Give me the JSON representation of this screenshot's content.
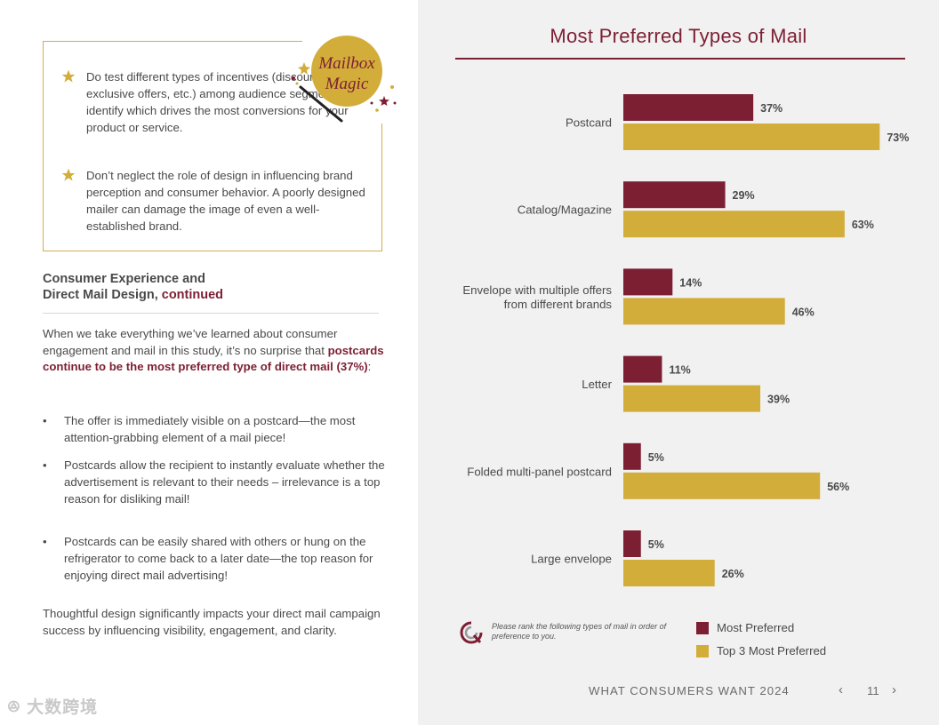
{
  "tips": [
    {
      "text": "Do test different types of incentives (discounts, exclusive offers, etc.) among audience segments to identify which drives the most conversions for your product or service."
    },
    {
      "text": "Don’t neglect the role of design in influencing brand perception and consumer behavior. A poorly designed mailer can damage the image of even a well-established brand."
    }
  ],
  "badge": {
    "line1": "Mailbox",
    "line2": "Magic"
  },
  "section": {
    "heading_line1": "Consumer Experience and",
    "heading_line2": "Direct Mail Design,",
    "heading_cont": "continued"
  },
  "intro": {
    "plain": "When we take everything we’ve learned about consumer engagement and mail in this study, it’s no surprise that ",
    "highlight": "postcards continue to be the most preferred type of direct mail (37%)",
    "tail": ":"
  },
  "bullets": [
    "The offer is immediately visible on a postcard—the most attention-grabbing element of a mail piece!",
    "Postcards allow the recipient to instantly evaluate whether the advertisement is relevant to their needs – irrelevance is a top reason for disliking mail!",
    "Postcards can be easily shared with others or hung on the refrigerator to come back to a later date—the top reason for enjoying direct mail advertising!"
  ],
  "outro": "Thoughtful design significantly impacts your direct mail campaign success by influencing visibility, engagement, and clarity.",
  "watermark": "大数跨境",
  "chart_data": {
    "type": "bar",
    "orientation": "horizontal",
    "title": "Most Preferred Types of Mail",
    "categories": [
      "Postcard",
      "Catalog/Magazine",
      "Envelope with multiple offers from different brands",
      "Letter",
      "Folded multi-panel postcard",
      "Large envelope"
    ],
    "category_lines": [
      [
        "Postcard"
      ],
      [
        "Catalog/Magazine"
      ],
      [
        "Envelope with multiple offers",
        "from different brands"
      ],
      [
        "Letter"
      ],
      [
        "Folded multi-panel postcard"
      ],
      [
        "Large envelope"
      ]
    ],
    "series": [
      {
        "name": "Most Preferred",
        "color": "#7d1f33",
        "values": [
          37,
          29,
          14,
          11,
          5,
          5
        ]
      },
      {
        "name": "Top 3 Most Preferred",
        "color": "#d2ad3a",
        "values": [
          73,
          63,
          46,
          39,
          56,
          26
        ]
      }
    ],
    "value_suffix": "%",
    "xlim": [
      0,
      100
    ],
    "legend_position": "bottom-right",
    "note": "Please rank the following types of mail in order of preference to you."
  },
  "footer": {
    "title": "WHAT CONSUMERS WANT 2024",
    "page": "11",
    "prev": "‹",
    "next": "›"
  }
}
